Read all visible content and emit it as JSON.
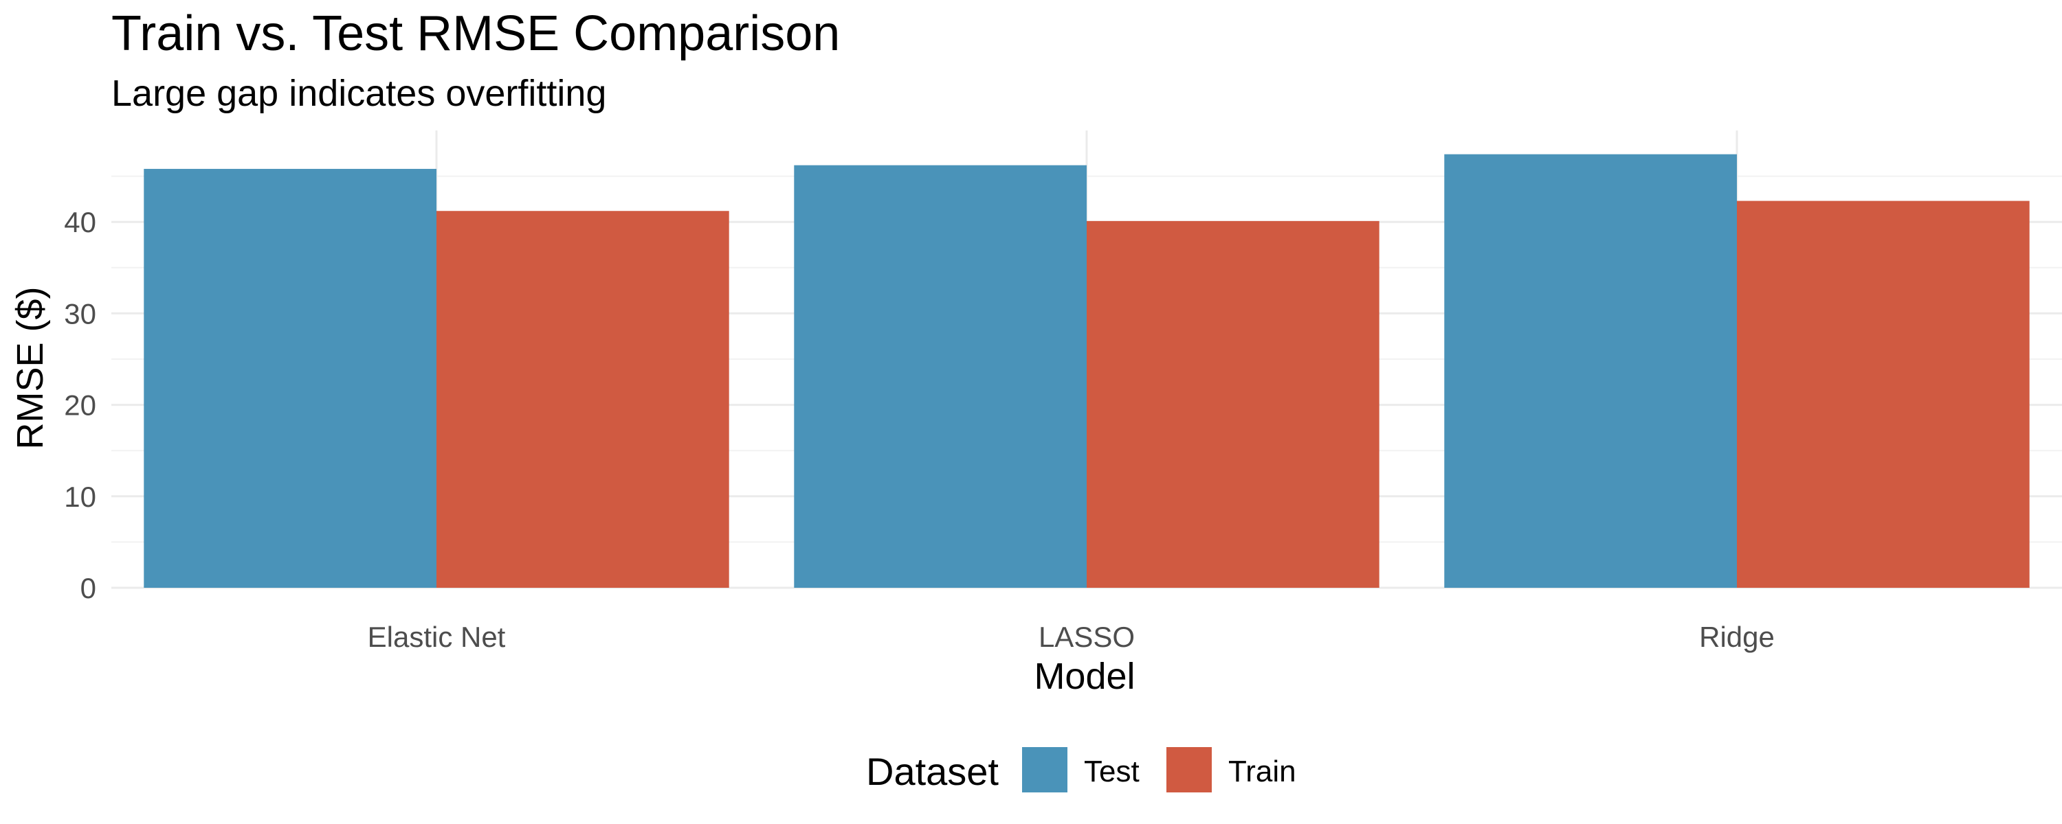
{
  "chart_data": {
    "type": "bar",
    "title": "Train vs. Test RMSE Comparison",
    "subtitle": "Large gap indicates overfitting",
    "xlabel": "Model",
    "ylabel": "RMSE ($)",
    "categories": [
      "Elastic Net",
      "LASSO",
      "Ridge"
    ],
    "series": [
      {
        "name": "Test",
        "values": [
          45.8,
          46.2,
          47.4
        ],
        "color": "#4a93b9"
      },
      {
        "name": "Train",
        "values": [
          41.2,
          40.1,
          42.3
        ],
        "color": "#d05a41"
      }
    ],
    "ylim": [
      0,
      50
    ],
    "y_ticks": [
      0,
      10,
      20,
      30,
      40
    ],
    "grid": true,
    "legend": {
      "title": "Dataset",
      "position": "bottom"
    }
  }
}
